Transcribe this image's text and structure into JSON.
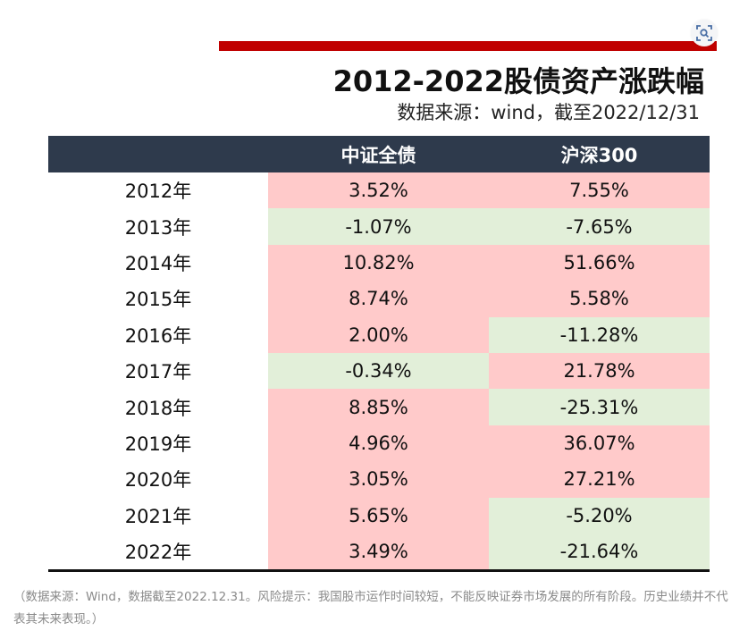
{
  "header": {
    "title": "2012-2022股债资产涨跌幅",
    "subtitle": "数据来源：wind，截至2022/12/31"
  },
  "table": {
    "columns": [
      "",
      "中证全债",
      "沪深300"
    ],
    "rows": [
      {
        "year": "2012年",
        "bond": "3.52%",
        "csi300": "7.55%"
      },
      {
        "year": "2013年",
        "bond": "-1.07%",
        "csi300": "-7.65%"
      },
      {
        "year": "2014年",
        "bond": "10.82%",
        "csi300": "51.66%"
      },
      {
        "year": "2015年",
        "bond": "8.74%",
        "csi300": "5.58%"
      },
      {
        "year": "2016年",
        "bond": "2.00%",
        "csi300": "-11.28%"
      },
      {
        "year": "2017年",
        "bond": "-0.34%",
        "csi300": "21.78%"
      },
      {
        "year": "2018年",
        "bond": "8.85%",
        "csi300": "-25.31%"
      },
      {
        "year": "2019年",
        "bond": "4.96%",
        "csi300": "36.07%"
      },
      {
        "year": "2020年",
        "bond": "3.05%",
        "csi300": "27.21%"
      },
      {
        "year": "2021年",
        "bond": "5.65%",
        "csi300": "-5.20%"
      },
      {
        "year": "2022年",
        "bond": "3.49%",
        "csi300": "-21.64%"
      }
    ]
  },
  "footnote": "（数据来源：Wind，数据截至2022.12.31。风险提示：我国股市运作时间较短，不能反映证券市场发展的所有阶段。历史业绩并不代表其未来表现。）",
  "colors": {
    "positive": "#ffcaca",
    "negative": "#e2efd9",
    "header_bg": "#2e3a4c",
    "accent_bar": "#c00000"
  },
  "icons": {
    "image_search": "image-search-icon"
  }
}
